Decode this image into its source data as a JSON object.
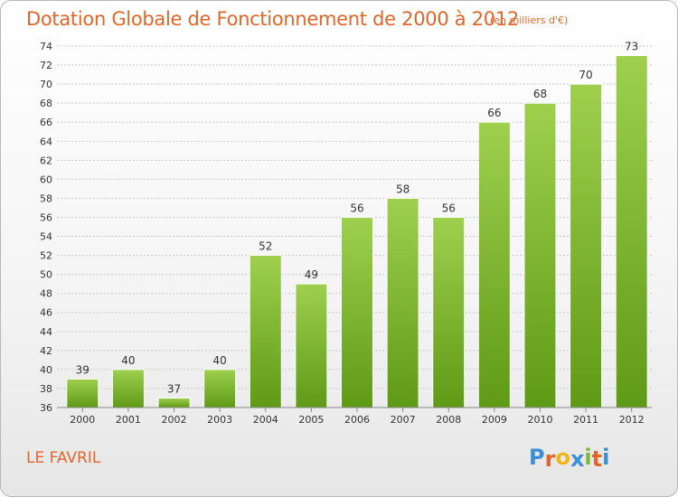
{
  "commune": "LE FAVRIL",
  "logo": {
    "letters": [
      "P",
      "r",
      "o",
      "x",
      "i",
      "t",
      "i"
    ],
    "colors": [
      "#3a8fd6",
      "#e0662a",
      "#f2b618",
      "#3a8fd6",
      "#79b830",
      "#e0662a",
      "#3a8fd6"
    ]
  },
  "chart_data": {
    "type": "bar",
    "title": "Dotation Globale de Fonctionnement de 2000 à 2012",
    "subtitle": "(en milliers d'€)",
    "categories": [
      "2000",
      "2001",
      "2002",
      "2003",
      "2004",
      "2005",
      "2006",
      "2007",
      "2008",
      "2009",
      "2010",
      "2011",
      "2012"
    ],
    "values": [
      39,
      40,
      37,
      40,
      52,
      49,
      56,
      58,
      56,
      66,
      68,
      70,
      73
    ],
    "ylim": [
      36,
      74
    ],
    "yticks": [
      36,
      38,
      40,
      42,
      44,
      46,
      48,
      50,
      52,
      54,
      56,
      58,
      60,
      62,
      64,
      66,
      68,
      70,
      72,
      74
    ],
    "grid": true,
    "colors": {
      "bar_light": "#9ed04e",
      "bar_dark": "#5f9a16",
      "grid": "#c8c8c8",
      "text": "#333333"
    }
  }
}
